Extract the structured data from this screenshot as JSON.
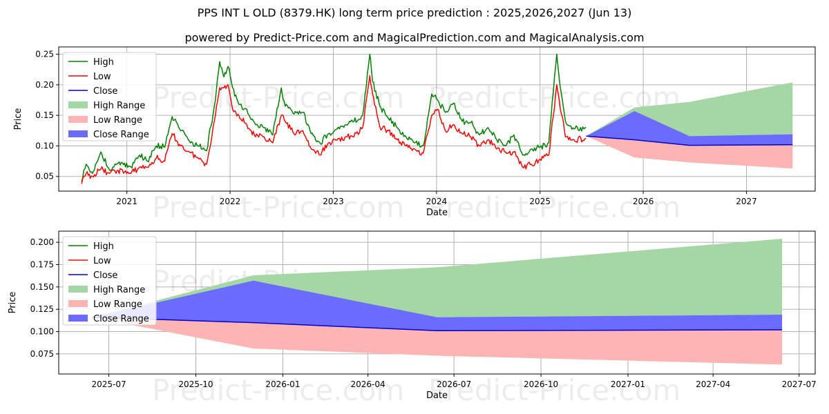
{
  "title": "PPS INT L OLD (8379.HK) long term price prediction : 2025,2026,2027 (Jun 13)",
  "subtitle": "powered by Predict-Price.com and MagicalPrediction.com and MagicalAnalysis.com",
  "watermark": "Predict-Price.com",
  "colors": {
    "high": "#008000",
    "low": "#ff0000",
    "close": "#0000cd",
    "high_range": "#a5d7a5",
    "low_range": "#ffb4b4",
    "close_range": "#6b6bff"
  },
  "chart_data": [
    {
      "type": "line",
      "xlabel": "Date",
      "ylabel": "Price",
      "xlim": [
        "2020-05-05",
        "2027-09-01"
      ],
      "ylim": [
        0.026,
        0.262
      ],
      "grid": true,
      "legend_position": "top-left",
      "x_ticks": [
        "2021",
        "2022",
        "2023",
        "2024",
        "2025",
        "2026",
        "2027"
      ],
      "x_tick_dates": [
        "2021-01-01",
        "2022-01-01",
        "2023-01-01",
        "2024-01-01",
        "2025-01-01",
        "2026-01-01",
        "2027-01-01"
      ],
      "y_ticks": [
        "0.05",
        "0.10",
        "0.15",
        "0.20",
        "0.25"
      ],
      "y_tick_values": [
        0.05,
        0.1,
        0.15,
        0.2,
        0.25
      ],
      "legend": [
        "High",
        "Low",
        "Close",
        "High Range",
        "Low Range",
        "Close Range"
      ],
      "series": [
        {
          "name": "High",
          "x": [
            "2020-07-25",
            "2020-08-10",
            "2020-09-01",
            "2020-10-01",
            "2020-11-01",
            "2020-12-01",
            "2021-01-15",
            "2021-02-15",
            "2021-03-15",
            "2021-04-15",
            "2021-05-15",
            "2021-06-10",
            "2021-07-10",
            "2021-08-10",
            "2021-09-10",
            "2021-10-10",
            "2021-11-10",
            "2021-11-25",
            "2021-12-10",
            "2021-12-25",
            "2022-01-10",
            "2022-02-01",
            "2022-03-01",
            "2022-04-01",
            "2022-05-01",
            "2022-06-01",
            "2022-07-01",
            "2022-07-15",
            "2022-08-15",
            "2022-09-15",
            "2022-10-15",
            "2022-11-15",
            "2022-12-15",
            "2023-01-15",
            "2023-02-15",
            "2023-03-15",
            "2023-04-15",
            "2023-05-10",
            "2023-05-20",
            "2023-06-15",
            "2023-07-15",
            "2023-08-15",
            "2023-09-15",
            "2023-10-15",
            "2023-11-15",
            "2023-12-15",
            "2024-01-05",
            "2024-02-01",
            "2024-03-01",
            "2024-04-01",
            "2024-05-01",
            "2024-06-01",
            "2024-07-01",
            "2024-08-01",
            "2024-09-01",
            "2024-10-01",
            "2024-11-01",
            "2024-12-01",
            "2025-01-01",
            "2025-02-01",
            "2025-03-01",
            "2025-03-10",
            "2025-04-01",
            "2025-05-01",
            "2025-06-13"
          ],
          "values": [
            0.042,
            0.07,
            0.055,
            0.09,
            0.06,
            0.072,
            0.066,
            0.085,
            0.075,
            0.1,
            0.098,
            0.148,
            0.125,
            0.108,
            0.1,
            0.092,
            0.175,
            0.238,
            0.213,
            0.23,
            0.195,
            0.168,
            0.16,
            0.135,
            0.13,
            0.118,
            0.195,
            0.165,
            0.152,
            0.155,
            0.12,
            0.105,
            0.12,
            0.128,
            0.135,
            0.14,
            0.15,
            0.25,
            0.205,
            0.165,
            0.145,
            0.13,
            0.115,
            0.105,
            0.1,
            0.185,
            0.175,
            0.155,
            0.17,
            0.14,
            0.138,
            0.118,
            0.13,
            0.11,
            0.1,
            0.118,
            0.085,
            0.095,
            0.098,
            0.105,
            0.25,
            0.21,
            0.14,
            0.128,
            0.13
          ]
        },
        {
          "name": "Low",
          "x": [
            "2020-07-25",
            "2020-08-10",
            "2020-09-01",
            "2020-10-01",
            "2020-11-01",
            "2020-12-01",
            "2021-01-15",
            "2021-02-15",
            "2021-03-15",
            "2021-04-15",
            "2021-05-15",
            "2021-06-10",
            "2021-07-10",
            "2021-08-10",
            "2021-09-10",
            "2021-10-10",
            "2021-11-10",
            "2021-11-25",
            "2021-12-10",
            "2021-12-25",
            "2022-01-10",
            "2022-02-01",
            "2022-03-01",
            "2022-04-01",
            "2022-05-01",
            "2022-06-01",
            "2022-07-01",
            "2022-07-15",
            "2022-08-15",
            "2022-09-15",
            "2022-10-15",
            "2022-11-15",
            "2022-12-15",
            "2023-01-15",
            "2023-02-15",
            "2023-03-15",
            "2023-04-15",
            "2023-05-10",
            "2023-05-20",
            "2023-06-15",
            "2023-07-15",
            "2023-08-15",
            "2023-09-15",
            "2023-10-15",
            "2023-11-15",
            "2023-12-15",
            "2024-01-05",
            "2024-02-01",
            "2024-03-01",
            "2024-04-01",
            "2024-05-01",
            "2024-06-01",
            "2024-07-01",
            "2024-08-01",
            "2024-09-01",
            "2024-10-01",
            "2024-11-01",
            "2024-12-01",
            "2025-01-01",
            "2025-02-01",
            "2025-03-01",
            "2025-03-10",
            "2025-04-01",
            "2025-05-01",
            "2025-06-13"
          ],
          "values": [
            0.038,
            0.055,
            0.05,
            0.062,
            0.055,
            0.06,
            0.055,
            0.065,
            0.065,
            0.08,
            0.075,
            0.12,
            0.1,
            0.09,
            0.08,
            0.07,
            0.15,
            0.195,
            0.195,
            0.2,
            0.16,
            0.15,
            0.135,
            0.115,
            0.115,
            0.105,
            0.15,
            0.14,
            0.12,
            0.125,
            0.095,
            0.085,
            0.105,
            0.11,
            0.115,
            0.115,
            0.13,
            0.215,
            0.185,
            0.13,
            0.125,
            0.11,
            0.1,
            0.095,
            0.088,
            0.15,
            0.16,
            0.125,
            0.135,
            0.12,
            0.115,
            0.1,
            0.11,
            0.095,
            0.09,
            0.09,
            0.065,
            0.07,
            0.078,
            0.085,
            0.2,
            0.175,
            0.115,
            0.11,
            0.112
          ]
        },
        {
          "name": "Close",
          "x": [
            "2025-06-13",
            "2025-12-01",
            "2026-06-13",
            "2027-06-13"
          ],
          "values": [
            0.116,
            0.11,
            0.101,
            0.102
          ]
        },
        {
          "name": "High Range",
          "x": [
            "2025-06-13",
            "2025-12-01",
            "2026-06-13",
            "2027-06-13"
          ],
          "upper": [
            0.116,
            0.163,
            0.172,
            0.204
          ],
          "lower": [
            0.116,
            0.116,
            0.116,
            0.119
          ]
        },
        {
          "name": "Low Range",
          "x": [
            "2025-06-13",
            "2025-12-01",
            "2026-06-13",
            "2027-06-13"
          ],
          "upper": [
            0.116,
            0.11,
            0.101,
            0.102
          ],
          "lower": [
            0.116,
            0.081,
            0.073,
            0.063
          ]
        },
        {
          "name": "Close Range",
          "x": [
            "2025-06-13",
            "2025-12-01",
            "2026-06-13",
            "2027-06-13"
          ],
          "upper": [
            0.116,
            0.157,
            0.116,
            0.119
          ],
          "lower": [
            0.116,
            0.11,
            0.101,
            0.102
          ]
        }
      ]
    },
    {
      "type": "line",
      "xlabel": "Date",
      "ylabel": "Price",
      "xlim": [
        "2025-05-09",
        "2027-07-18"
      ],
      "ylim": [
        0.0525,
        0.2125
      ],
      "grid": true,
      "legend_position": "top-left",
      "x_ticks": [
        "2025-07",
        "2025-10",
        "2026-01",
        "2026-04",
        "2026-07",
        "2026-10",
        "2027-01",
        "2027-04",
        "2027-07"
      ],
      "x_tick_dates": [
        "2025-07-01",
        "2025-10-01",
        "2026-01-01",
        "2026-04-01",
        "2026-07-01",
        "2026-10-01",
        "2027-01-01",
        "2027-04-01",
        "2027-07-01"
      ],
      "y_ticks": [
        "0.075",
        "0.100",
        "0.125",
        "0.150",
        "0.175",
        "0.200"
      ],
      "y_tick_values": [
        0.075,
        0.1,
        0.125,
        0.15,
        0.175,
        0.2
      ],
      "legend": [
        "High",
        "Low",
        "Close",
        "High Range",
        "Low Range",
        "Close Range"
      ],
      "series": [
        {
          "name": "Close",
          "x": [
            "2025-06-13",
            "2025-12-01",
            "2026-06-13",
            "2027-06-13"
          ],
          "values": [
            0.116,
            0.11,
            0.101,
            0.102
          ]
        },
        {
          "name": "High Range",
          "x": [
            "2025-06-13",
            "2025-12-01",
            "2026-06-13",
            "2027-06-13"
          ],
          "upper": [
            0.116,
            0.163,
            0.172,
            0.204
          ],
          "lower": [
            0.116,
            0.116,
            0.116,
            0.119
          ]
        },
        {
          "name": "Low Range",
          "x": [
            "2025-06-13",
            "2025-12-01",
            "2026-06-13",
            "2027-06-13"
          ],
          "upper": [
            0.116,
            0.11,
            0.101,
            0.102
          ],
          "lower": [
            0.116,
            0.081,
            0.073,
            0.063
          ]
        },
        {
          "name": "Close Range",
          "x": [
            "2025-06-13",
            "2025-12-01",
            "2026-06-13",
            "2027-06-13"
          ],
          "upper": [
            0.116,
            0.157,
            0.116,
            0.119
          ],
          "lower": [
            0.116,
            0.11,
            0.101,
            0.102
          ]
        }
      ]
    }
  ]
}
